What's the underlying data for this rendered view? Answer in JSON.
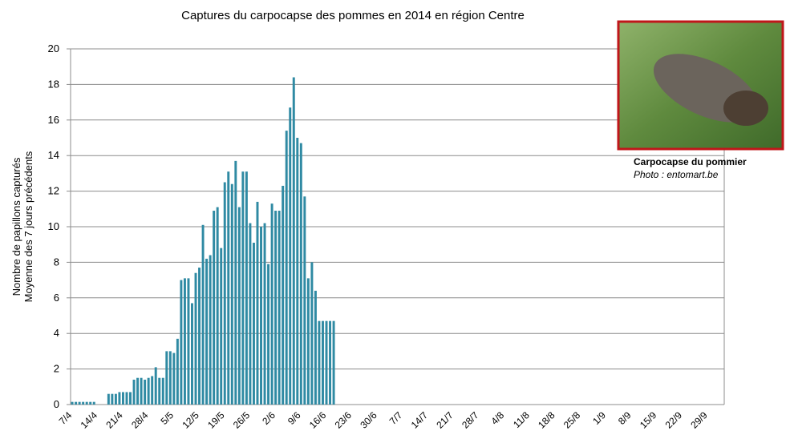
{
  "chart_data": {
    "type": "bar",
    "title": "Captures du carpocapse des pommes en 2014 en région Centre",
    "ylabel": [
      "Nombre de papillons capturés",
      "Moyenne des 7 jours précédents"
    ],
    "photo_caption": "Carpocapse du pommier",
    "photo_credit": "Photo : entomart.be",
    "color": "#2f8aa3",
    "grid": true,
    "ylim": [
      0,
      20
    ],
    "yticks": [
      0,
      2,
      4,
      6,
      8,
      10,
      12,
      14,
      16,
      18,
      20
    ],
    "categories": [
      "7/4",
      null,
      null,
      null,
      null,
      null,
      null,
      "14/4",
      null,
      null,
      null,
      null,
      null,
      null,
      "21/4",
      null,
      null,
      null,
      null,
      null,
      null,
      "28/4",
      null,
      null,
      null,
      null,
      null,
      null,
      "5/5",
      null,
      null,
      null,
      null,
      null,
      null,
      "12/5",
      null,
      null,
      null,
      null,
      null,
      null,
      "19/5",
      null,
      null,
      null,
      null,
      null,
      null,
      "26/5",
      null,
      null,
      null,
      null,
      null,
      null,
      "2/6",
      null,
      null,
      null,
      null,
      null,
      null,
      "9/6",
      null,
      null,
      null,
      null,
      null,
      null,
      "16/6",
      null,
      null,
      null,
      null,
      null,
      null,
      "23/6",
      null,
      null,
      null,
      null,
      null,
      null,
      "30/6",
      null,
      null,
      null,
      null,
      null,
      null,
      "7/7",
      null,
      null,
      null,
      null,
      null,
      null,
      "14/7",
      null,
      null,
      null,
      null,
      null,
      null,
      "21/7",
      null,
      null,
      null,
      null,
      null,
      null,
      "28/7",
      null,
      null,
      null,
      null,
      null,
      null,
      "4/8",
      null,
      null,
      null,
      null,
      null,
      null,
      "11/8",
      null,
      null,
      null,
      null,
      null,
      null,
      "18/8",
      null,
      null,
      null,
      null,
      null,
      null,
      "25/8",
      null,
      null,
      null,
      null,
      null,
      null,
      "1/9",
      null,
      null,
      null,
      null,
      null,
      null,
      "8/9",
      null,
      null,
      null,
      null,
      null,
      null,
      "15/9",
      null,
      null,
      null,
      null,
      null,
      null,
      "22/9",
      null,
      null,
      null,
      null,
      null,
      null,
      "29/9",
      null,
      null,
      null,
      null
    ],
    "values": [
      0.15,
      0.15,
      0.15,
      0.15,
      0.15,
      0.15,
      0.15,
      0,
      0,
      0,
      0.6,
      0.6,
      0.6,
      0.7,
      0.7,
      0.7,
      0.7,
      1.4,
      1.5,
      1.5,
      1.4,
      1.5,
      1.6,
      2.1,
      1.5,
      1.5,
      3.0,
      3.0,
      2.9,
      3.7,
      7.0,
      7.1,
      7.1,
      5.7,
      7.4,
      7.7,
      10.1,
      8.2,
      8.4,
      10.9,
      11.1,
      8.8,
      12.5,
      13.1,
      12.4,
      13.7,
      11.1,
      13.1,
      13.1,
      10.2,
      9.1,
      11.4,
      10.0,
      10.2,
      7.9,
      11.3,
      10.9,
      10.9,
      12.3,
      15.4,
      16.7,
      18.4,
      15.0,
      14.7,
      11.7,
      7.1,
      8.0,
      6.4,
      4.7,
      4.7,
      4.7,
      4.7,
      4.7,
      null,
      null,
      null,
      null,
      null,
      null,
      null,
      null,
      null,
      null,
      null,
      null,
      null,
      null,
      null,
      null,
      null,
      null,
      null,
      null,
      null,
      null,
      null,
      null,
      null,
      null,
      null,
      null,
      null,
      null,
      null,
      null,
      null,
      null,
      null,
      null,
      null,
      null,
      null,
      null,
      null,
      null,
      null,
      null,
      null,
      null,
      null,
      null,
      null,
      null,
      null,
      null,
      null,
      null,
      null,
      null,
      null,
      null,
      null,
      null,
      null,
      null,
      null,
      null,
      null,
      null,
      null,
      null,
      null,
      null,
      null,
      null,
      null,
      null,
      null,
      null,
      null,
      null,
      null,
      null,
      null,
      null,
      null,
      null,
      null,
      null,
      null,
      null,
      null,
      null,
      null,
      null,
      null,
      null,
      null,
      null,
      null,
      null,
      null,
      null,
      null,
      null,
      null,
      null,
      null,
      null,
      null
    ]
  }
}
